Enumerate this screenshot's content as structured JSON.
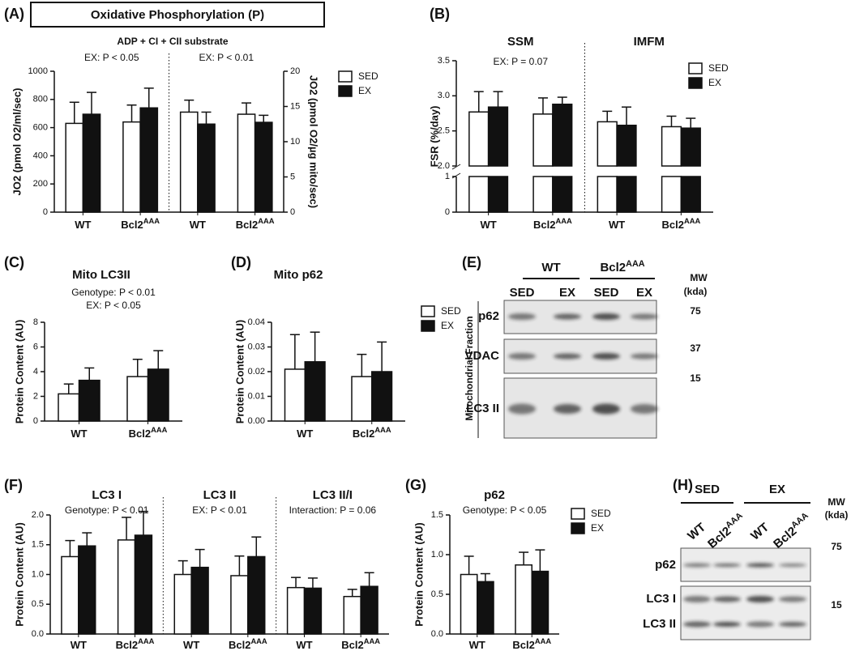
{
  "chart_data": [
    {
      "type": "bar",
      "panel": "(A)",
      "title": "Oxidative Phosphorylation (P)",
      "subtitle": "ADP + CI + CII substrate",
      "annotations": [
        "EX: P < 0.05",
        "EX: P < 0.01"
      ],
      "categories": [
        {
          "label": "WT"
        },
        {
          "label": "Bcl2",
          "sup": "AAA"
        },
        {
          "label": "WT"
        },
        {
          "label": "Bcl2",
          "sup": "AAA"
        }
      ],
      "category_axes": [
        "y",
        "y",
        "y2",
        "y2"
      ],
      "series": [
        {
          "name": "SED",
          "color": "#ffffff",
          "values": [
            630,
            640,
            14.2,
            13.9
          ],
          "errors": [
            150,
            120,
            1.7,
            1.6
          ]
        },
        {
          "name": "EX",
          "color": "#111111",
          "values": [
            695,
            740,
            12.5,
            12.75
          ],
          "errors": [
            155,
            140,
            1.7,
            1.0
          ]
        }
      ],
      "ylabel": "JO2 (pmol O2/ml/sec)",
      "ylim": [
        0,
        1000
      ],
      "yticks": [
        0,
        200,
        400,
        600,
        800,
        1000
      ],
      "y2label": "JO2 (pmol O2/µg mito/sec)",
      "y2lim": [
        0,
        20
      ],
      "y2ticks": [
        0,
        5,
        10,
        15,
        20
      ],
      "legend": "upper right"
    },
    {
      "type": "bar",
      "panel": "(B)",
      "group_titles": [
        "SSM",
        "IMFM"
      ],
      "annotations": [
        "EX: P = 0.07"
      ],
      "categories": [
        {
          "label": "WT"
        },
        {
          "label": "Bcl2",
          "sup": "AAA"
        },
        {
          "label": "WT"
        },
        {
          "label": "Bcl2",
          "sup": "AAA"
        }
      ],
      "series": [
        {
          "name": "SED",
          "color": "#ffffff",
          "values": [
            2.77,
            2.74,
            2.63,
            2.56
          ],
          "errors": [
            0.29,
            0.23,
            0.15,
            0.15
          ]
        },
        {
          "name": "EX",
          "color": "#111111",
          "values": [
            2.84,
            2.88,
            2.58,
            2.54
          ],
          "errors": [
            0.22,
            0.1,
            0.26,
            0.14
          ]
        }
      ],
      "ylabel": "FSR (%/day)",
      "ylim": [
        2.0,
        3.5
      ],
      "yticks": [
        {
          "value": 2.0,
          "label": "2.0"
        },
        2.5,
        {
          "value": 3.0,
          "label": "3.0"
        },
        3.5
      ],
      "ylim_lower": [
        0,
        1
      ],
      "yticks_lower": [
        0,
        1
      ],
      "legend": "upper right"
    },
    {
      "type": "bar",
      "panel": "(C)",
      "title": "Mito LC3II",
      "annotations": [
        "Genotype: P < 0.01",
        "EX: P < 0.05"
      ],
      "categories": [
        {
          "label": "WT"
        },
        {
          "label": "Bcl2",
          "sup": "AAA"
        }
      ],
      "series": [
        {
          "name": "SED",
          "color": "#ffffff",
          "values": [
            2.2,
            3.6
          ],
          "errors": [
            0.8,
            1.4
          ]
        },
        {
          "name": "EX",
          "color": "#111111",
          "values": [
            3.3,
            4.2
          ],
          "errors": [
            1.0,
            1.5
          ]
        }
      ],
      "ylabel": "Protein Content (AU)",
      "ylim": [
        0,
        8
      ],
      "yticks": [
        0,
        2,
        4,
        6,
        8
      ]
    },
    {
      "type": "bar",
      "panel": "(D)",
      "title": "Mito p62",
      "categories": [
        {
          "label": "WT"
        },
        {
          "label": "Bcl2",
          "sup": "AAA"
        }
      ],
      "series": [
        {
          "name": "SED",
          "color": "#ffffff",
          "values": [
            0.021,
            0.018
          ],
          "errors": [
            0.014,
            0.009
          ]
        },
        {
          "name": "EX",
          "color": "#111111",
          "values": [
            0.024,
            0.02
          ],
          "errors": [
            0.012,
            0.012
          ]
        }
      ],
      "ylabel": "Protein Content (AU)",
      "ylim": [
        0,
        0.04
      ],
      "yticks": [
        {
          "value": 0,
          "label": "0.00"
        },
        {
          "value": 0.01,
          "label": "0.01"
        },
        {
          "value": 0.02,
          "label": "0.02"
        },
        {
          "value": 0.03,
          "label": "0.03"
        },
        {
          "value": 0.04,
          "label": "0.04"
        }
      ],
      "legend": "upper right"
    },
    {
      "type": "bar",
      "panel": "(F)",
      "group_titles": [
        "LC3 I",
        "LC3 II",
        "LC3 II/I"
      ],
      "annotations": [
        "Genotype: P < 0.01",
        "EX: P < 0.01",
        "Interaction: P = 0.06"
      ],
      "categories": [
        {
          "label": "WT"
        },
        {
          "label": "Bcl2",
          "sup": "AAA"
        },
        {
          "label": "WT"
        },
        {
          "label": "Bcl2",
          "sup": "AAA"
        },
        {
          "label": "WT"
        },
        {
          "label": "Bcl2",
          "sup": "AAA"
        }
      ],
      "series": [
        {
          "name": "SED",
          "color": "#ffffff",
          "values": [
            1.3,
            1.58,
            1.0,
            0.98,
            0.78,
            0.63
          ],
          "errors": [
            0.27,
            0.38,
            0.23,
            0.33,
            0.17,
            0.12
          ]
        },
        {
          "name": "EX",
          "color": "#111111",
          "values": [
            1.48,
            1.66,
            1.12,
            1.3,
            0.77,
            0.8
          ],
          "errors": [
            0.22,
            0.4,
            0.3,
            0.33,
            0.17,
            0.23
          ]
        }
      ],
      "ylabel": "Protein Content (AU)",
      "ylim": [
        0,
        2.0
      ],
      "yticks": [
        {
          "value": 0,
          "label": "0.0"
        },
        0.5,
        {
          "value": 1.0,
          "label": "1.0"
        },
        1.5,
        {
          "value": 2.0,
          "label": "2.0"
        }
      ]
    },
    {
      "type": "bar",
      "panel": "(G)",
      "title": "p62",
      "annotations": [
        "Genotype: P < 0.05"
      ],
      "categories": [
        {
          "label": "WT"
        },
        {
          "label": "Bcl2",
          "sup": "AAA"
        }
      ],
      "series": [
        {
          "name": "SED",
          "color": "#ffffff",
          "values": [
            0.75,
            0.87
          ],
          "errors": [
            0.23,
            0.16
          ]
        },
        {
          "name": "EX",
          "color": "#111111",
          "values": [
            0.66,
            0.79
          ],
          "errors": [
            0.1,
            0.27
          ]
        }
      ],
      "ylabel": "Protein Content (AU)",
      "ylim": [
        0,
        1.5
      ],
      "yticks": [
        {
          "value": 0,
          "label": "0.0"
        },
        0.5,
        {
          "value": 1.0,
          "label": "1.0"
        },
        1.5
      ],
      "legend": "upper right"
    }
  ],
  "blots": [
    {
      "panel": "(E)",
      "group_headers": [
        {
          "label": "WT"
        },
        {
          "label": "Bcl2",
          "sup": "AAA"
        }
      ],
      "lane_labels": [
        {
          "label": "SED"
        },
        {
          "label": "EX"
        },
        {
          "label": "SED"
        },
        {
          "label": "EX"
        }
      ],
      "mw_header": [
        "MW",
        "(kda)"
      ],
      "side_label": "Mitochondrial Fraction",
      "rows": [
        {
          "labels": [
            "p62"
          ],
          "mw": 75
        },
        {
          "labels": [
            "VDAC"
          ],
          "mw": 37
        },
        {
          "labels": [
            "LC3 II"
          ],
          "mw": 15
        }
      ]
    },
    {
      "panel": "(H)",
      "group_headers": [
        {
          "label": "SED"
        },
        {
          "label": "EX"
        }
      ],
      "lane_labels": [
        {
          "label": "WT"
        },
        {
          "label": "Bcl2",
          "sup": "AAA"
        },
        {
          "label": "WT"
        },
        {
          "label": "Bcl2",
          "sup": "AAA"
        }
      ],
      "mw_header": [
        "MW",
        "(kda)"
      ],
      "rows": [
        {
          "labels": [
            "p62"
          ],
          "mw": 75
        },
        {
          "labels": [
            "LC3 I",
            "LC3 II"
          ],
          "mw": 15
        }
      ]
    }
  ]
}
